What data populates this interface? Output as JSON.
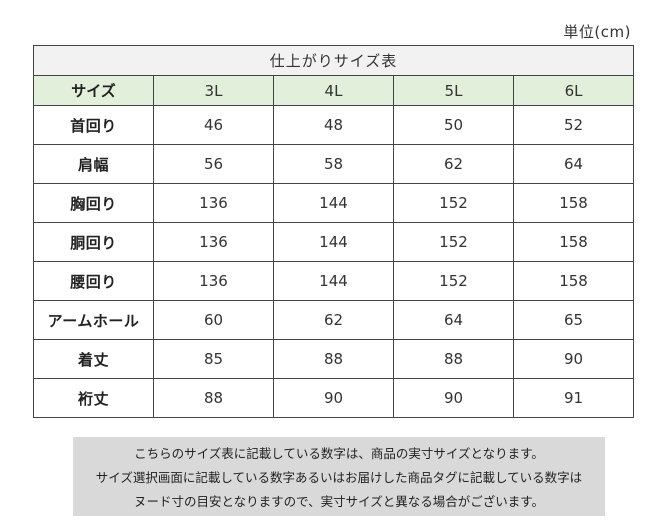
{
  "unit_label": "単位(cm)",
  "table": {
    "title": "仕上がりサイズ表",
    "header": {
      "label": "サイズ",
      "sizes": [
        "3L",
        "4L",
        "5L",
        "6L"
      ]
    },
    "rows": [
      {
        "label": "首回り",
        "values": [
          "46",
          "48",
          "50",
          "52"
        ]
      },
      {
        "label": "肩幅",
        "values": [
          "56",
          "58",
          "62",
          "64"
        ]
      },
      {
        "label": "胸回り",
        "values": [
          "136",
          "144",
          "152",
          "158"
        ]
      },
      {
        "label": "胴回り",
        "values": [
          "136",
          "144",
          "152",
          "158"
        ]
      },
      {
        "label": "腰回り",
        "values": [
          "136",
          "144",
          "152",
          "158"
        ]
      },
      {
        "label": "アームホール",
        "values": [
          "60",
          "62",
          "64",
          "65"
        ]
      },
      {
        "label": "着丈",
        "values": [
          "85",
          "88",
          "88",
          "90"
        ]
      },
      {
        "label": "裄丈",
        "values": [
          "88",
          "90",
          "90",
          "91"
        ]
      }
    ]
  },
  "notice": {
    "lines": [
      "こちらのサイズ表に記載している数字は、商品の実寸サイズとなります。",
      "サイズ選択画面に記載している数字あるいはお届けした商品タグに記載している数字は",
      "ヌード寸の目安となりますので、実寸サイズと異なる場合がございます。"
    ]
  }
}
